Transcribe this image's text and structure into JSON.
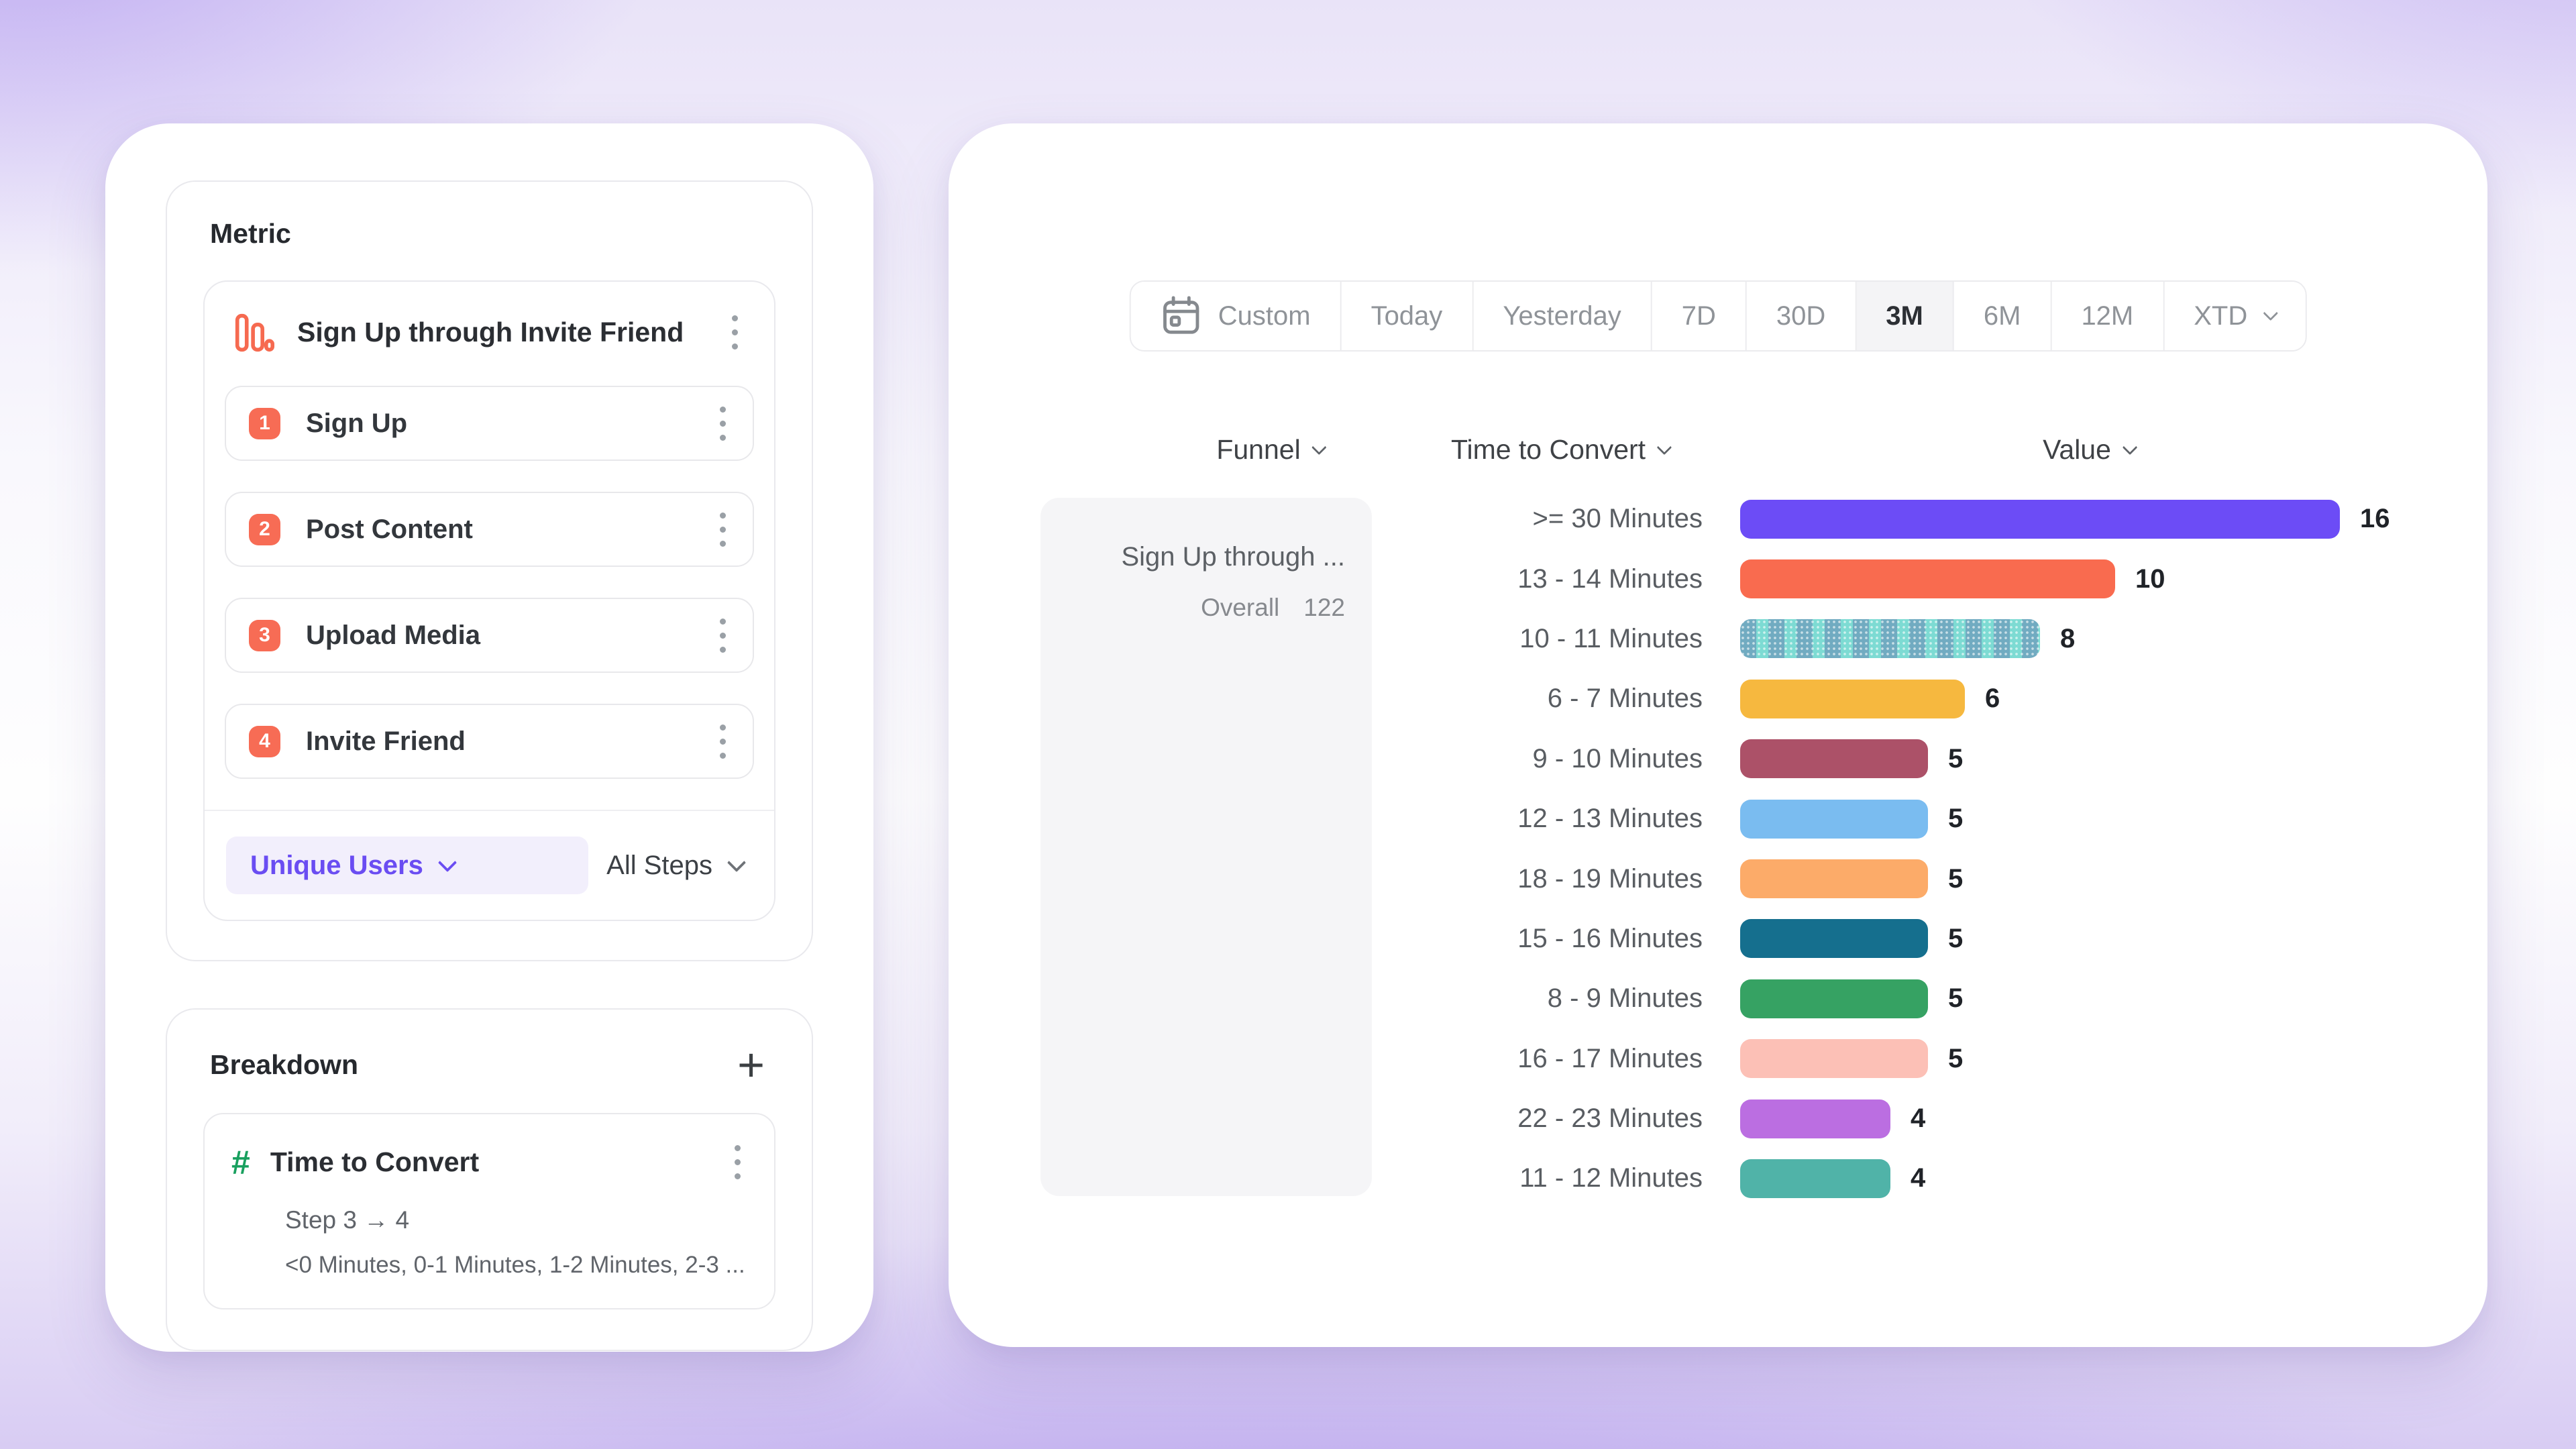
{
  "colors": {
    "accent_purple": "#6a4df2",
    "badge_coral": "#f76c55",
    "hash_green": "#19a05f",
    "funnel_icon_orange": "#f66a50",
    "active_tab_bg": "#f4f4f6",
    "funnel_cell_bg": "#f5f5f7"
  },
  "metric_panel": {
    "title": "Metric",
    "funnel": {
      "icon": "bar-chart-icon",
      "title": "Sign Up through Invite Friend",
      "steps": [
        {
          "num": "1",
          "label": "Sign Up"
        },
        {
          "num": "2",
          "label": "Post Content"
        },
        {
          "num": "3",
          "label": "Upload Media"
        },
        {
          "num": "4",
          "label": "Invite Friend"
        }
      ],
      "measurement_label": "Unique Users",
      "steps_filter_label": "All Steps"
    }
  },
  "breakdown_panel": {
    "title": "Breakdown",
    "add_label": "+",
    "item": {
      "icon": "hash-icon",
      "title": "Time to Convert",
      "subtitle": "Step 3 → 4",
      "detail": "<0 Minutes, 0-1 Minutes, 1-2 Minutes, 2-3 ..."
    }
  },
  "toolbar": {
    "items": [
      {
        "label": "Custom",
        "icon": "calendar-icon"
      },
      {
        "label": "Today"
      },
      {
        "label": "Yesterday"
      },
      {
        "label": "7D"
      },
      {
        "label": "30D"
      },
      {
        "label": "3M",
        "active": true
      },
      {
        "label": "6M"
      },
      {
        "label": "12M"
      },
      {
        "label": "XTD",
        "chevron": true
      }
    ],
    "active": "3M"
  },
  "chart": {
    "columns": [
      "Funnel",
      "Time to Convert",
      "Value"
    ],
    "funnel_cell": {
      "title": "Sign Up through ...",
      "overall_label": "Overall",
      "overall_value": "122"
    }
  },
  "chart_data": {
    "type": "bar",
    "orientation": "horizontal",
    "title": "Time to Convert breakdown (Step 3 → 4)",
    "categories": [
      ">= 30 Minutes",
      "13 - 14 Minutes",
      "10 - 11 Minutes",
      "6 - 7 Minutes",
      "9 - 10 Minutes",
      "12 - 13 Minutes",
      "18 - 19 Minutes",
      "15 - 16 Minutes",
      "8 - 9 Minutes",
      "16 - 17 Minutes",
      "22 - 23 Minutes",
      "11 - 12 Minutes"
    ],
    "values": [
      16,
      10,
      8,
      6,
      5,
      5,
      5,
      5,
      5,
      5,
      4,
      4
    ],
    "colors": [
      "#6c4cf6",
      "#f96b4f",
      "#7ddbd3",
      "#f6b83f",
      "#ac5168",
      "#7abcf0",
      "#fcab69",
      "#156f8e",
      "#36a263",
      "#fcc0b6",
      "#bb6ee1",
      "#50b3a8"
    ],
    "patterned_index": 2,
    "value_labels": true,
    "xlim": [
      0,
      16
    ],
    "grid": false,
    "legend": "none"
  }
}
